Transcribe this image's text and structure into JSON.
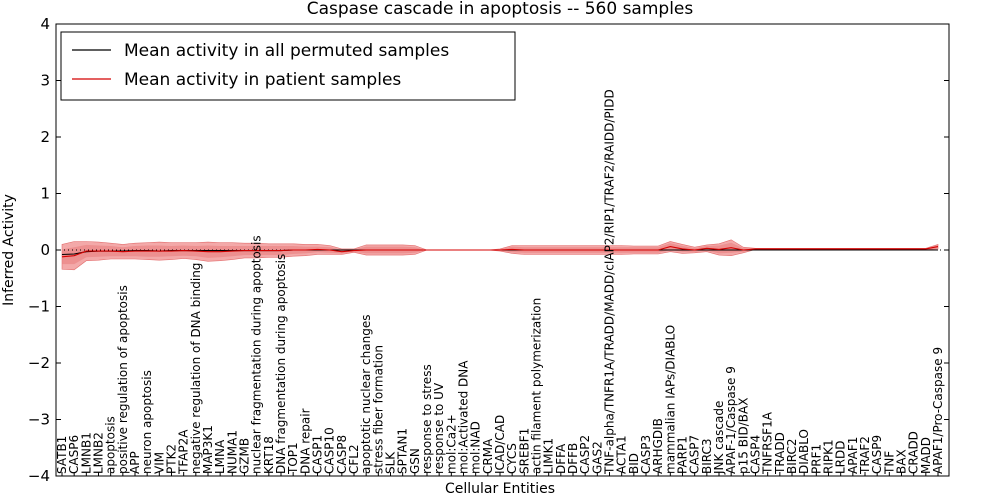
{
  "chart_data": {
    "type": "line",
    "title": "Caspase cascade in apoptosis -- 560 samples",
    "xlabel": "Cellular Entities",
    "ylabel": "Inferred Activity",
    "ylim": [
      -4,
      4
    ],
    "yticks": [
      -4,
      -3,
      -2,
      -1,
      0,
      1,
      2,
      3,
      4
    ],
    "ytick_labels": [
      "−4",
      "−3",
      "−2",
      "−1",
      "0",
      "1",
      "2",
      "3",
      "4"
    ],
    "legend_position": "top-left",
    "categories": [
      "SATB1",
      "CASP6",
      "LMNB1",
      "LMNB2",
      "apoptosis",
      "positive regulation of apoptosis",
      "APP",
      "neuron apoptosis",
      "VIM",
      "PTK2",
      "TFAP2A",
      "negative regulation of DNA binding",
      "MAP3K1",
      "LMNA",
      "NUMA1",
      "GZMB",
      "nuclear fragmentation during apoptosis",
      "KRT18",
      "DNA fragmentation during apoptosis",
      "TOP1",
      "DNA repair",
      "CASP1",
      "CASP10",
      "CASP8",
      "CFL2",
      "apoptotic nuclear changes",
      "stress fiber formation",
      "SLK",
      "SPTAN1",
      "GSN",
      "response to stress",
      "response to UV",
      "mol:Ca2+",
      "mol:Activated DNA",
      "mol:NAD",
      "CRMA",
      "ICAD/CAD",
      "CYCS",
      "SREBF1",
      "actin filament polymerization",
      "LIMK1",
      "DFFA",
      "DFFB",
      "CASP2",
      "GAS2",
      "TNF-alpha/TNFR1A/TRADD/MADD/cIAP2/RIP1/TRAF2/RAIDD/PIDD",
      "ACTA1",
      "BID",
      "CASP3",
      "ARHGDIB",
      "mammalian IAPs/DIABLO",
      "PARP1",
      "CASP7",
      "BIRC3",
      "JNK cascade",
      "APAF-1/Caspase 9",
      "p15 BID/BAX",
      "CASP4",
      "TNFRSF1A",
      "TRADD",
      "BIRC2",
      "DIABLO",
      "PRF1",
      "RIPK1",
      "LRDD",
      "APAF1",
      "TRAF2",
      "CASP9",
      "TNF",
      "BAX",
      "CRADD",
      "MADD",
      "APAF1/Pro-Caspase 9"
    ],
    "series": [
      {
        "name": "Mean activity in all permuted samples",
        "color": "#000000",
        "values": [
          -0.08,
          -0.07,
          -0.03,
          -0.02,
          -0.02,
          -0.02,
          -0.01,
          -0.01,
          -0.02,
          -0.01,
          -0.01,
          -0.01,
          -0.01,
          -0.01,
          -0.01,
          -0.01,
          -0.01,
          -0.01,
          -0.01,
          0.0,
          0.0,
          0.0,
          0.0,
          0.0,
          0.0,
          0.0,
          0.0,
          0.0,
          0.0,
          0.0,
          0.0,
          0.0,
          0.0,
          0.0,
          0.0,
          0.0,
          0.0,
          0.0,
          0.0,
          0.0,
          0.0,
          0.0,
          0.0,
          0.0,
          0.0,
          0.0,
          0.0,
          0.0,
          0.0,
          0.0,
          0.0,
          0.0,
          0.0,
          0.0,
          0.0,
          0.0,
          0.0,
          0.0,
          0.0,
          0.0,
          0.0,
          0.0,
          0.0,
          0.0,
          0.0,
          0.0,
          0.0,
          0.0,
          0.0,
          0.0,
          0.0,
          0.0,
          0.0
        ]
      },
      {
        "name": "Mean activity in patient samples",
        "color": "#d40000",
        "values": [
          -0.12,
          -0.1,
          -0.02,
          -0.02,
          -0.02,
          -0.03,
          -0.02,
          -0.02,
          -0.02,
          -0.02,
          -0.01,
          -0.02,
          -0.03,
          -0.03,
          -0.02,
          -0.01,
          -0.01,
          -0.01,
          -0.01,
          0.0,
          0.0,
          0.01,
          0.0,
          -0.03,
          -0.01,
          0.0,
          0.0,
          0.0,
          0.0,
          0.0,
          0.0,
          0.0,
          0.0,
          0.0,
          0.0,
          0.0,
          0.0,
          0.01,
          0.0,
          0.0,
          0.0,
          0.0,
          0.0,
          0.0,
          0.0,
          0.0,
          0.0,
          0.0,
          0.0,
          0.0,
          0.06,
          0.02,
          0.0,
          0.03,
          0.01,
          0.04,
          0.0,
          0.02,
          0.02,
          0.02,
          0.02,
          0.02,
          0.02,
          0.02,
          0.02,
          0.02,
          0.02,
          0.02,
          0.02,
          0.02,
          0.02,
          0.02,
          0.06
        ]
      }
    ],
    "band_outer_halfwidth": [
      0.22,
      0.25,
      0.17,
      0.16,
      0.14,
      0.13,
      0.14,
      0.15,
      0.16,
      0.15,
      0.14,
      0.15,
      0.17,
      0.16,
      0.15,
      0.13,
      0.13,
      0.12,
      0.12,
      0.11,
      0.1,
      0.09,
      0.08,
      0.05,
      0.03,
      0.09,
      0.09,
      0.09,
      0.09,
      0.08,
      0.0,
      0.0,
      0.0,
      0.0,
      0.0,
      0.0,
      0.02,
      0.07,
      0.08,
      0.08,
      0.08,
      0.08,
      0.08,
      0.08,
      0.08,
      0.08,
      0.08,
      0.07,
      0.07,
      0.07,
      0.09,
      0.08,
      0.05,
      0.06,
      0.1,
      0.14,
      0.05,
      0.01,
      0.01,
      0.01,
      0.01,
      0.01,
      0.01,
      0.01,
      0.01,
      0.01,
      0.01,
      0.01,
      0.01,
      0.01,
      0.01,
      0.01,
      0.04
    ],
    "band_inner_halfwidth": [
      0.13,
      0.15,
      0.11,
      0.1,
      0.09,
      0.08,
      0.09,
      0.1,
      0.1,
      0.09,
      0.09,
      0.09,
      0.11,
      0.1,
      0.09,
      0.08,
      0.08,
      0.08,
      0.08,
      0.07,
      0.06,
      0.05,
      0.05,
      0.03,
      0.02,
      0.06,
      0.06,
      0.06,
      0.06,
      0.05,
      0.0,
      0.0,
      0.0,
      0.0,
      0.0,
      0.0,
      0.01,
      0.05,
      0.05,
      0.05,
      0.05,
      0.05,
      0.05,
      0.05,
      0.05,
      0.05,
      0.05,
      0.05,
      0.05,
      0.05,
      0.06,
      0.05,
      0.03,
      0.04,
      0.07,
      0.09,
      0.03,
      0.01,
      0.01,
      0.01,
      0.01,
      0.01,
      0.01,
      0.01,
      0.01,
      0.01,
      0.01,
      0.01,
      0.01,
      0.01,
      0.01,
      0.01,
      0.03
    ]
  }
}
